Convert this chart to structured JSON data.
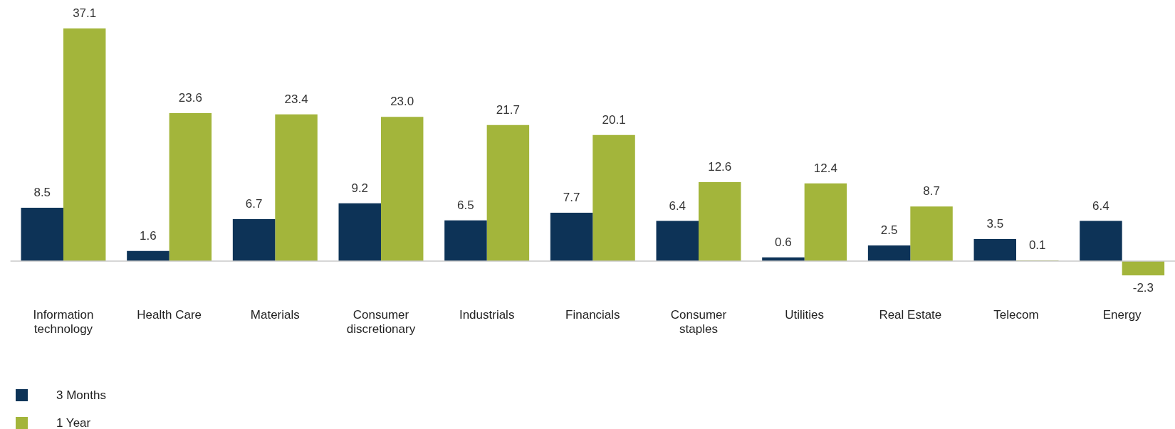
{
  "chart_data": {
    "type": "bar",
    "categories": [
      "Information technology",
      "Health Care",
      "Materials",
      "Consumer discretionary",
      "Industrials",
      "Financials",
      "Consumer staples",
      "Utilities",
      "Real Estate",
      "Telecom",
      "Energy"
    ],
    "series": [
      {
        "name": "3 Months",
        "color": "#0d3357",
        "values": [
          8.5,
          1.6,
          6.7,
          9.2,
          6.5,
          7.7,
          6.4,
          0.6,
          2.5,
          3.5,
          6.4
        ],
        "value_labels": [
          "8.5",
          "1.6",
          "6.7",
          "9.2",
          "6.5",
          "7.7",
          "6.4",
          "0.6",
          "2.5",
          "3.5",
          "6.4"
        ]
      },
      {
        "name": "1 Year",
        "color": "#a3b53b",
        "values": [
          37.1,
          23.6,
          23.4,
          23.0,
          21.7,
          20.1,
          12.6,
          12.4,
          8.7,
          0.1,
          -2.3
        ],
        "value_labels": [
          "37.1",
          "23.6",
          "23.4",
          "23.0",
          "21.7",
          "20.1",
          "12.6",
          "12.4",
          "8.7",
          "0.1",
          "-2.3"
        ]
      }
    ],
    "grid": false,
    "legend": "bottom left",
    "tick_labels": "x"
  }
}
